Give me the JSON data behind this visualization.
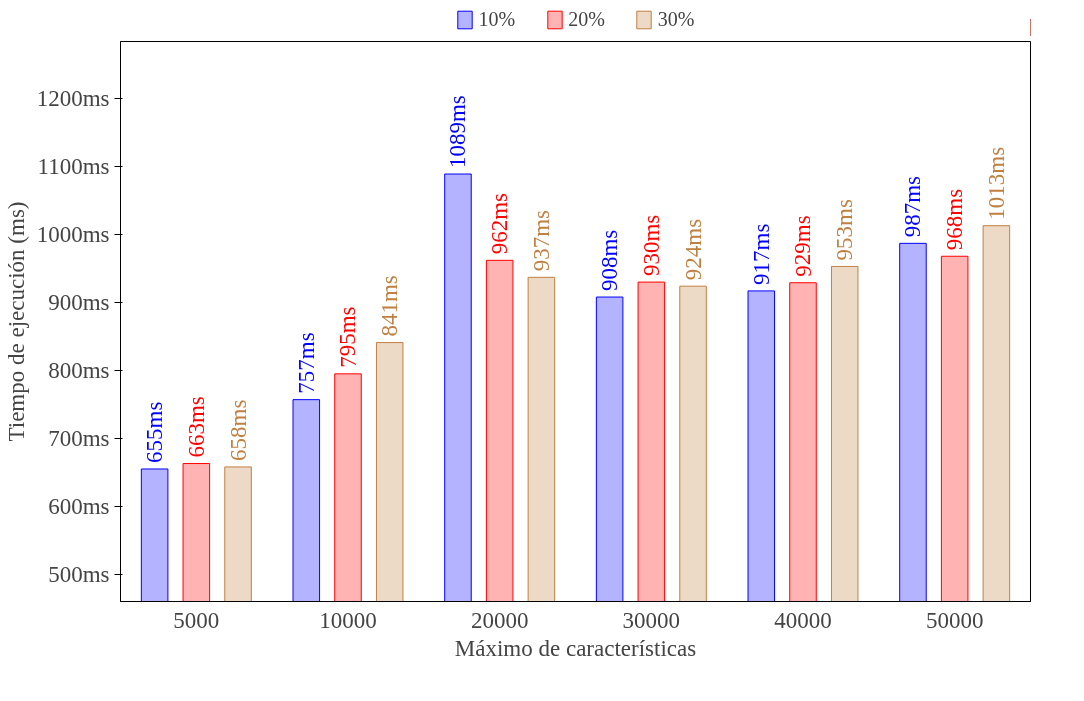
{
  "chart_data": {
    "type": "bar",
    "xlabel": "Máximo de características",
    "ylabel": "Tiempo de ejecución (ms)",
    "categories": [
      "5000",
      "10000",
      "20000",
      "30000",
      "40000",
      "50000"
    ],
    "series": [
      {
        "name": "10%",
        "color": "#b3b3ff",
        "values": [
          655,
          757,
          1089,
          908,
          917,
          987
        ],
        "value_labels": [
          "655ms",
          "757ms",
          "1089ms",
          "908ms",
          "917ms",
          "987ms"
        ]
      },
      {
        "name": "20%",
        "color": "#ffb3b3",
        "values": [
          663,
          795,
          962,
          930,
          929,
          968
        ],
        "value_labels": [
          "663ms",
          "795ms",
          "962ms",
          "930ms",
          "929ms",
          "968ms"
        ]
      },
      {
        "name": "30%",
        "color": "#ecd9c6",
        "values": [
          658,
          841,
          937,
          924,
          953,
          1013
        ],
        "value_labels": [
          "658ms",
          "841ms",
          "937ms",
          "924ms",
          "953ms",
          "1013ms"
        ]
      }
    ],
    "ylim": [
      460,
      1284
    ],
    "yticks": [
      {
        "value": 500,
        "label": "500ms"
      },
      {
        "value": 600,
        "label": "600ms"
      },
      {
        "value": 700,
        "label": "700ms"
      },
      {
        "value": 800,
        "label": "800ms"
      },
      {
        "value": 900,
        "label": "900ms"
      },
      {
        "value": 1000,
        "label": "1000ms"
      },
      {
        "value": 1100,
        "label": "1100ms"
      },
      {
        "value": 1200,
        "label": "1200ms"
      }
    ],
    "legend": "top",
    "grid": false
  }
}
